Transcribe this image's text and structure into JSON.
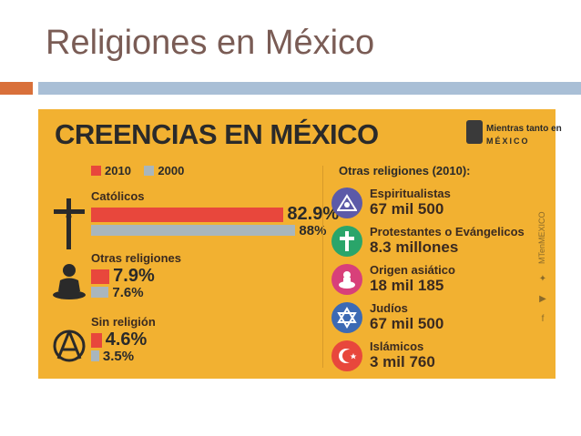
{
  "slide": {
    "title": "Religiones en México"
  },
  "infographic": {
    "title": "CREENCIAS EN MÉXICO",
    "brand": {
      "line1": "Mientras tanto en",
      "line2": "MÉXICO"
    },
    "legend": [
      {
        "label": "2010",
        "color": "#e8473c"
      },
      {
        "label": "2000",
        "color": "#a9b6bd"
      }
    ],
    "colors": {
      "background": "#f2b131",
      "series_2010": "#e8473c",
      "series_2000": "#a9b6bd"
    },
    "categories": [
      {
        "name": "Católicos",
        "icon": "crucifix-icon",
        "v2010": 82.9,
        "v2000": 88,
        "label2010": "82.9%",
        "label2000": "88%"
      },
      {
        "name": "Otras religiones",
        "icon": "meditation-icon",
        "v2010": 7.9,
        "v2000": 7.6,
        "label2010": "7.9%",
        "label2000": "7.6%"
      },
      {
        "name": "Sin religión",
        "icon": "atheism-icon",
        "v2010": 4.6,
        "v2000": 3.5,
        "label2010": "4.6%",
        "label2000": "3.5%"
      }
    ],
    "other_religions": {
      "heading": "Otras religiones (2010):",
      "items": [
        {
          "name": "Espiritualistas",
          "count": "67 mil 500",
          "icon": "eye-triangle-icon",
          "color": "#5c5aa8"
        },
        {
          "name": "Protestantes o Evángelicos",
          "count": "8.3 millones",
          "icon": "cross-icon",
          "color": "#2aa56a"
        },
        {
          "name": "Origen asiático",
          "count": "18 mil 185",
          "icon": "buddha-icon",
          "color": "#d8407a"
        },
        {
          "name": "Judíos",
          "count": "67 mil 500",
          "icon": "star-of-david-icon",
          "color": "#3c6ab4"
        },
        {
          "name": "Islámicos",
          "count": "3 mil 760",
          "icon": "crescent-star-icon",
          "color": "#e8473c"
        }
      ]
    },
    "social_handle": "MTenMEXICO"
  }
}
